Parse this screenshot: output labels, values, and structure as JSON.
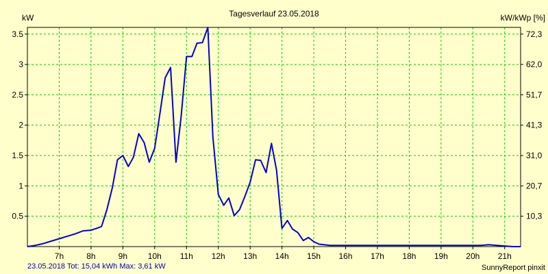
{
  "chart_data": {
    "type": "line",
    "title": "Tagesverlauf 23.05.2018",
    "ylabel": "kW",
    "y2label": "kW/kWp [%]",
    "footer_left": "23.05.2018 Tot: 15,04 kWh Max: 3,61 kW",
    "footer_right": "SunnyReport pinxit",
    "xlim": [
      6.0,
      21.5
    ],
    "ylim": [
      0,
      3.61
    ],
    "x_ticks": [
      7,
      8,
      9,
      10,
      11,
      12,
      13,
      14,
      15,
      16,
      17,
      18,
      19,
      20,
      21
    ],
    "x_tick_labels": [
      "7h",
      "8h",
      "9h",
      "10h",
      "11h",
      "12h",
      "13h",
      "14h",
      "15h",
      "16h",
      "17h",
      "18h",
      "19h",
      "20h",
      "21h"
    ],
    "y_ticks": [
      0.5,
      1,
      1.5,
      2,
      2.5,
      3,
      3.5
    ],
    "y_tick_labels": [
      "0.5",
      "1",
      "1.5",
      "2",
      "2.5",
      "3",
      "3.5"
    ],
    "y2_ticks": [
      0.5,
      1,
      1.5,
      2,
      2.5,
      3,
      3.5
    ],
    "y2_tick_labels": [
      "10,3",
      "20,7",
      "31,0",
      "41,3",
      "51,7",
      "62,0",
      "72,3"
    ],
    "grid": true,
    "colors": {
      "line": "#0000cc",
      "grid": "#00cc00",
      "background": "#ffffcc"
    },
    "series": [
      {
        "x": [
          6.0,
          6.25,
          6.5,
          6.75,
          7.0,
          7.25,
          7.5,
          7.75,
          8.0,
          8.17,
          8.33,
          8.5,
          8.67,
          8.83,
          9.0,
          9.17,
          9.33,
          9.5,
          9.67,
          9.83,
          10.0,
          10.17,
          10.33,
          10.5,
          10.67,
          10.83,
          11.0,
          11.17,
          11.33,
          11.5,
          11.67,
          11.83,
          12.0,
          12.17,
          12.33,
          12.5,
          12.67,
          12.83,
          13.0,
          13.17,
          13.33,
          13.5,
          13.67,
          13.83,
          14.0,
          14.17,
          14.33,
          14.5,
          14.67,
          14.83,
          15.0,
          15.17,
          15.33,
          15.5,
          15.67,
          15.83,
          16.0,
          16.17,
          16.33,
          16.5,
          16.67,
          16.83,
          17.0,
          17.17,
          17.33,
          17.5,
          17.67,
          17.83,
          18.0,
          18.17,
          18.33,
          18.5,
          18.67,
          18.83,
          19.0,
          19.25,
          19.5,
          19.75,
          20.0,
          20.25,
          20.5,
          20.75,
          21.0,
          21.25,
          21.5
        ],
        "y": [
          0.0,
          0.02,
          0.05,
          0.09,
          0.13,
          0.17,
          0.21,
          0.26,
          0.27,
          0.3,
          0.33,
          0.61,
          0.97,
          1.43,
          1.5,
          1.32,
          1.47,
          1.86,
          1.71,
          1.39,
          1.62,
          2.21,
          2.78,
          2.95,
          1.39,
          2.14,
          3.13,
          3.13,
          3.35,
          3.36,
          3.61,
          1.8,
          0.86,
          0.68,
          0.8,
          0.51,
          0.61,
          0.82,
          1.06,
          1.43,
          1.42,
          1.22,
          1.7,
          1.26,
          0.3,
          0.43,
          0.29,
          0.23,
          0.1,
          0.15,
          0.08,
          0.04,
          0.03,
          0.02,
          0.02,
          0.02,
          0.02,
          0.02,
          0.02,
          0.02,
          0.02,
          0.02,
          0.02,
          0.02,
          0.02,
          0.02,
          0.02,
          0.02,
          0.02,
          0.02,
          0.02,
          0.02,
          0.02,
          0.02,
          0.02,
          0.02,
          0.02,
          0.02,
          0.02,
          0.02,
          0.03,
          0.02,
          0.01,
          0.0,
          0.0
        ]
      }
    ]
  }
}
